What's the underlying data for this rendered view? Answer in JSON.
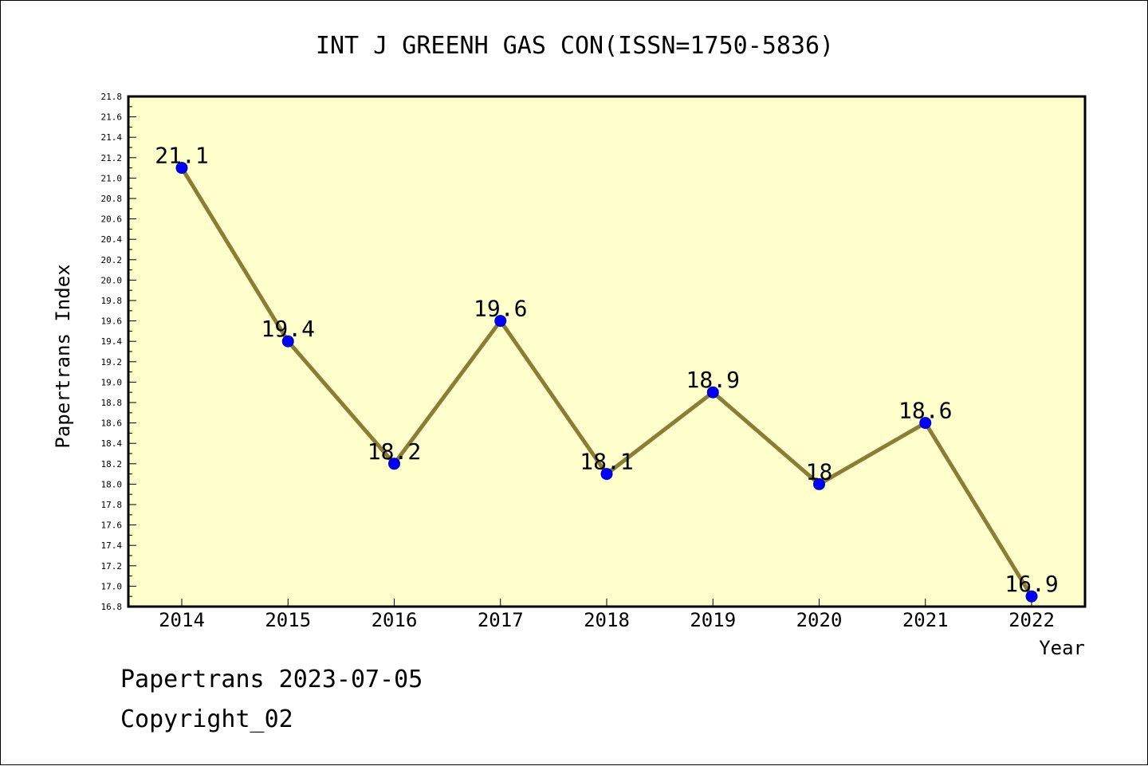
{
  "chart_data": {
    "type": "line",
    "title": "INT J GREENH GAS CON(ISSN=1750-5836)",
    "xlabel": "Year",
    "ylabel": "Papertrans Index",
    "categories": [
      "2014",
      "2015",
      "2016",
      "2017",
      "2018",
      "2019",
      "2020",
      "2021",
      "2022"
    ],
    "series": [
      {
        "values": [
          21.1,
          19.4,
          18.2,
          19.6,
          18.1,
          18.9,
          18.0,
          18.6,
          16.9
        ]
      }
    ],
    "data_labels": [
      "21.1",
      "19.4",
      "18.2",
      "19.6",
      "18.1",
      "18.9",
      "18",
      "18.6",
      "16.9"
    ],
    "ylim": [
      16.8,
      21.8
    ],
    "y_tick_step": 0.2,
    "grid": false,
    "legend": "none",
    "colors": {
      "plot_background": "#ffffcc",
      "line": "#8b7d36",
      "marker": "#0000ff"
    }
  },
  "footer": {
    "line1": "Papertrans 2023-07-05",
    "line2": "Copyright_02"
  }
}
